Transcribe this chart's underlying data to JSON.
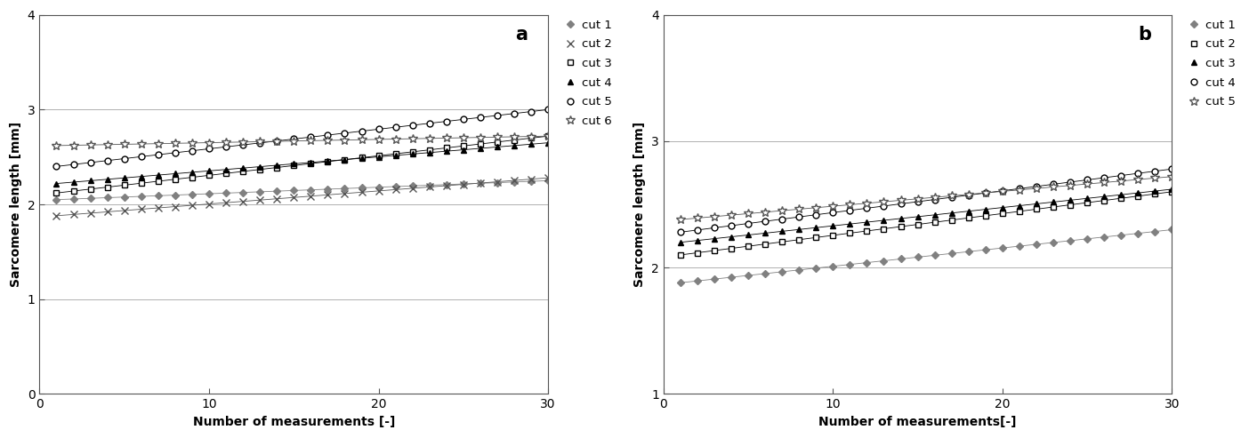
{
  "panel_a": {
    "label": "a",
    "ylabel": "Sarcomere length [mm]",
    "xlabel": "Number of measurements [-]",
    "xlim": [
      0,
      30
    ],
    "ylim": [
      0,
      4
    ],
    "yticks": [
      0,
      1,
      2,
      3,
      4
    ],
    "xticks": [
      0,
      10,
      20,
      30
    ],
    "cuts": [
      {
        "name": "cut 1",
        "start": 2.05,
        "end": 2.25,
        "marker": "D",
        "color": "#808080",
        "markersize": 4,
        "filled": true
      },
      {
        "name": "cut 2",
        "start": 1.88,
        "end": 2.28,
        "marker": "x",
        "color": "#555555",
        "markersize": 6,
        "filled": false
      },
      {
        "name": "cut 3",
        "start": 2.12,
        "end": 2.72,
        "marker": "s",
        "color": "#000000",
        "markersize": 4,
        "filled": false
      },
      {
        "name": "cut 4",
        "start": 2.22,
        "end": 2.65,
        "marker": "^",
        "color": "#000000",
        "markersize": 5,
        "filled": true
      },
      {
        "name": "cut 5",
        "start": 2.4,
        "end": 3.0,
        "marker": "o",
        "color": "#000000",
        "markersize": 5,
        "filled": false
      },
      {
        "name": "cut 6",
        "start": 2.62,
        "end": 2.72,
        "marker": "*",
        "color": "#555555",
        "markersize": 7,
        "filled": false
      }
    ]
  },
  "panel_b": {
    "label": "b",
    "ylabel": "Sarcomere length [mm]",
    "xlabel": "Number of measurements[-]",
    "xlim": [
      0,
      30
    ],
    "ylim": [
      1,
      4
    ],
    "yticks": [
      1,
      2,
      3,
      4
    ],
    "xticks": [
      0,
      10,
      20,
      30
    ],
    "cuts": [
      {
        "name": "cut 1",
        "start": 1.88,
        "end": 2.3,
        "marker": "D",
        "color": "#808080",
        "markersize": 4,
        "filled": true
      },
      {
        "name": "cut 2",
        "start": 2.1,
        "end": 2.6,
        "marker": "s",
        "color": "#000000",
        "markersize": 4,
        "filled": false
      },
      {
        "name": "cut 3",
        "start": 2.2,
        "end": 2.62,
        "marker": "^",
        "color": "#000000",
        "markersize": 5,
        "filled": true
      },
      {
        "name": "cut 4",
        "start": 2.28,
        "end": 2.78,
        "marker": "o",
        "color": "#000000",
        "markersize": 5,
        "filled": false
      },
      {
        "name": "cut 5",
        "start": 2.38,
        "end": 2.72,
        "marker": "*",
        "color": "#555555",
        "markersize": 7,
        "filled": false
      }
    ]
  },
  "background_color": "#ffffff",
  "grid_color": "#b0b0b0",
  "n_points": 30
}
